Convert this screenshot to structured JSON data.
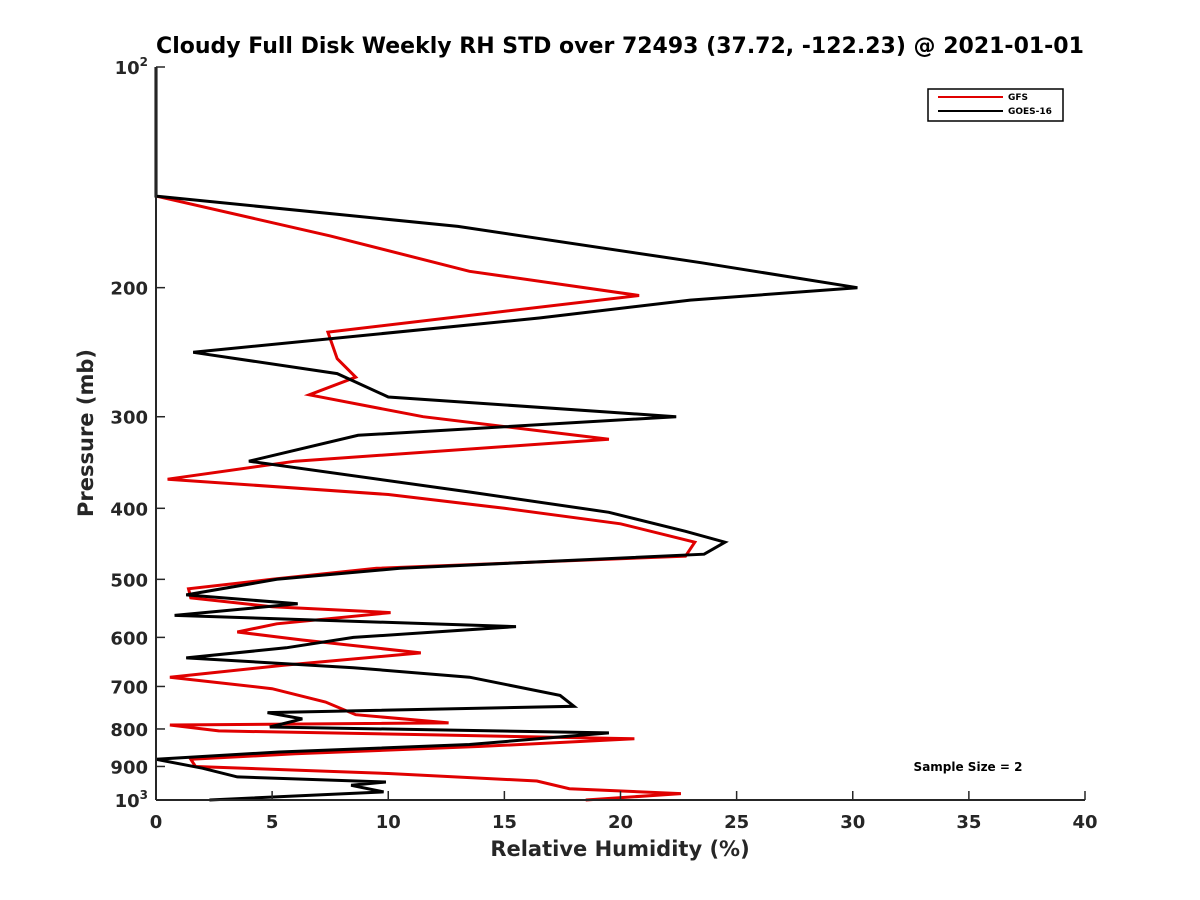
{
  "chart_data": {
    "type": "line",
    "title": "Cloudy Full Disk Weekly RH STD over 72493 (37.72, -122.23) @ 2021-01-01",
    "xlabel": "Relative Humidity (%)",
    "ylabel": "Pressure (mb)",
    "xlim": [
      0,
      40
    ],
    "ylim": [
      100,
      1000
    ],
    "y_scale": "log",
    "y_reversed": true,
    "grid": false,
    "legend_location": "top-right",
    "x_ticks": [
      "0",
      "5",
      "10",
      "15",
      "20",
      "25",
      "30",
      "35",
      "40"
    ],
    "y_ticks": [
      {
        "value": 100,
        "base": "10",
        "exp": "2"
      },
      {
        "value": 200,
        "label": "200"
      },
      {
        "value": 300,
        "label": "300"
      },
      {
        "value": 400,
        "label": "400"
      },
      {
        "value": 500,
        "label": "500"
      },
      {
        "value": 600,
        "label": "600"
      },
      {
        "value": 700,
        "label": "700"
      },
      {
        "value": 800,
        "label": "800"
      },
      {
        "value": 900,
        "label": "900"
      },
      {
        "value": 1000,
        "base": "10",
        "exp": "3"
      }
    ],
    "annotation": "Sample Size = 2",
    "series": [
      {
        "name": "GFS",
        "color": "#e00000",
        "points": [
          [
            0,
            100
          ],
          [
            0,
            125
          ],
          [
            0,
            150
          ],
          [
            7.5,
            170
          ],
          [
            13.5,
            190
          ],
          [
            20.8,
            205
          ],
          [
            7.4,
            230
          ],
          [
            7.8,
            250
          ],
          [
            8.6,
            265
          ],
          [
            6.6,
            280
          ],
          [
            11.5,
            300
          ],
          [
            19.5,
            322
          ],
          [
            6,
            345
          ],
          [
            0.5,
            365
          ],
          [
            10,
            383
          ],
          [
            15,
            400
          ],
          [
            20,
            420
          ],
          [
            23.2,
            445
          ],
          [
            22.8,
            465
          ],
          [
            9.5,
            483
          ],
          [
            5,
            500
          ],
          [
            1.4,
            515
          ],
          [
            1.5,
            530
          ],
          [
            5,
            545
          ],
          [
            10.1,
            555
          ],
          [
            5.2,
            575
          ],
          [
            3.5,
            590
          ],
          [
            6.3,
            605
          ],
          [
            11.4,
            630
          ],
          [
            5.5,
            655
          ],
          [
            0.6,
            680
          ],
          [
            5,
            705
          ],
          [
            7.3,
            735
          ],
          [
            8.6,
            765
          ],
          [
            12.6,
            785
          ],
          [
            0.6,
            790
          ],
          [
            2.7,
            805
          ],
          [
            12,
            815
          ],
          [
            20.6,
            825
          ],
          [
            14,
            845
          ],
          [
            6,
            865
          ],
          [
            1.5,
            880
          ],
          [
            1.7,
            900
          ],
          [
            10,
            920
          ],
          [
            16.4,
            942
          ],
          [
            17.8,
            965
          ],
          [
            22.6,
            980
          ],
          [
            18.5,
            1000
          ]
        ]
      },
      {
        "name": "GOES-16",
        "color": "#000000",
        "points": [
          [
            0,
            100
          ],
          [
            0,
            125
          ],
          [
            0,
            150
          ],
          [
            13,
            165
          ],
          [
            23.5,
            185
          ],
          [
            30.2,
            200
          ],
          [
            23,
            208
          ],
          [
            16.5,
            220
          ],
          [
            1.6,
            245
          ],
          [
            7.8,
            262
          ],
          [
            10,
            282
          ],
          [
            22.4,
            300
          ],
          [
            8.7,
            318
          ],
          [
            4,
            345
          ],
          [
            13.5,
            380
          ],
          [
            19.5,
            405
          ],
          [
            22.8,
            430
          ],
          [
            24.5,
            445
          ],
          [
            23.6,
            462
          ],
          [
            10.5,
            483
          ],
          [
            5.2,
            500
          ],
          [
            1.3,
            525
          ],
          [
            6.1,
            540
          ],
          [
            0.8,
            560
          ],
          [
            15.5,
            580
          ],
          [
            8.5,
            600
          ],
          [
            5.6,
            620
          ],
          [
            1.3,
            640
          ],
          [
            8.5,
            660
          ],
          [
            13.5,
            680
          ],
          [
            17.4,
            720
          ],
          [
            18,
            745
          ],
          [
            4.8,
            760
          ],
          [
            6.3,
            775
          ],
          [
            4.9,
            795
          ],
          [
            19.5,
            810
          ],
          [
            13.5,
            840
          ],
          [
            5.3,
            860
          ],
          [
            0,
            880
          ],
          [
            2,
            905
          ],
          [
            3.5,
            930
          ],
          [
            9.9,
            945
          ],
          [
            8.4,
            955
          ],
          [
            9.8,
            975
          ],
          [
            2.3,
            1000
          ]
        ]
      }
    ]
  }
}
